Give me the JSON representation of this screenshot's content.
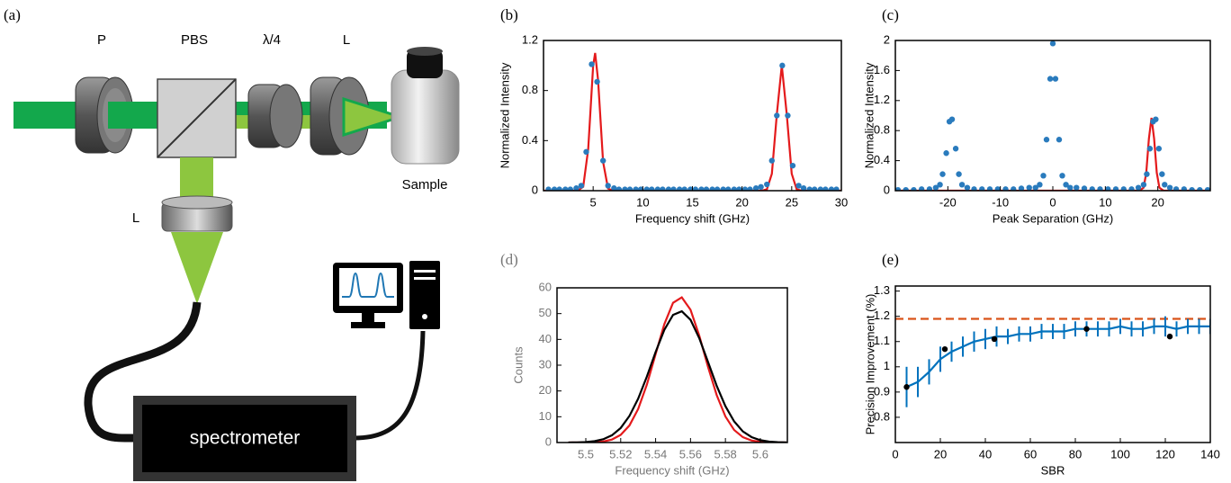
{
  "diagram": {
    "panel": "(a)",
    "labels": {
      "polarizer": "P",
      "pbs": "PBS",
      "waveplate": "λ/4",
      "lens_top": "L",
      "sample": "Sample",
      "lens_bottom": "L",
      "spectrometer": "spectrometer"
    }
  },
  "chart_data": [
    {
      "type": "line",
      "panel": "(b)",
      "xlabel": "Frequency shift (GHz)",
      "ylabel": "Normalized Intensity",
      "xlim": [
        0,
        30
      ],
      "ylim": [
        0,
        1.2
      ],
      "xticks": [
        5,
        10,
        15,
        20,
        25,
        30
      ],
      "yticks": [
        0,
        0.4,
        0.8,
        1.2
      ],
      "series": [
        {
          "color": "#e41a1c",
          "marker": "none",
          "x": [
            0,
            3,
            3.5,
            4,
            4.5,
            5,
            5.2,
            5.5,
            6,
            6.5,
            7,
            22,
            22.5,
            23,
            23.5,
            24,
            24.5,
            25,
            25.5,
            26,
            30
          ],
          "values": [
            0,
            0,
            0.003,
            0.031,
            0.33,
            1.0,
            1.1,
            0.88,
            0.23,
            0.017,
            0,
            0,
            0.011,
            0.135,
            0.61,
            1.0,
            0.61,
            0.135,
            0.011,
            0,
            0
          ]
        },
        {
          "color": "#2a7bbd",
          "marker": "dot",
          "x": [
            0.5,
            1.1,
            1.6,
            2.2,
            2.7,
            3.3,
            3.8,
            4.3,
            4.85,
            5.4,
            6.0,
            6.5,
            7.1,
            7.6,
            8.2,
            8.7,
            9.3,
            9.8,
            10.4,
            10.9,
            11.5,
            12.0,
            12.6,
            13.1,
            13.7,
            14.2,
            14.8,
            15.3,
            15.9,
            16.4,
            17.0,
            17.5,
            18.1,
            18.6,
            19.2,
            19.7,
            20.3,
            20.8,
            21.4,
            21.9,
            22.5,
            23.0,
            23.5,
            24.05,
            24.6,
            25.1,
            25.7,
            26.2,
            26.8,
            27.3,
            27.9,
            28.4,
            29.0,
            29.5
          ],
          "values": [
            0.01,
            0.01,
            0.01,
            0.01,
            0.01,
            0.02,
            0.04,
            0.31,
            1.01,
            0.87,
            0.24,
            0.04,
            0.02,
            0.01,
            0.01,
            0.01,
            0.01,
            0.01,
            0.01,
            0.01,
            0.01,
            0.01,
            0.01,
            0.01,
            0.01,
            0.01,
            0.01,
            0.01,
            0.01,
            0.01,
            0.01,
            0.01,
            0.01,
            0.01,
            0.01,
            0.01,
            0.01,
            0.01,
            0.02,
            0.03,
            0.05,
            0.24,
            0.6,
            1.0,
            0.6,
            0.2,
            0.04,
            0.02,
            0.01,
            0.01,
            0.01,
            0.01,
            0.01,
            0.01
          ]
        }
      ]
    },
    {
      "type": "line",
      "panel": "(c)",
      "xlabel": "Peak Separation (GHz)",
      "ylabel": "Normalized Intensity",
      "xlim": [
        -30,
        30
      ],
      "ylim": [
        0,
        2
      ],
      "xticks": [
        -20,
        -10,
        0,
        10,
        20
      ],
      "yticks": [
        0,
        0.4,
        0.8,
        1.2,
        1.6,
        2
      ],
      "series": [
        {
          "color": "#e41a1c",
          "marker": "none",
          "x": [
            -30,
            16.5,
            17.3,
            17.8,
            18.3,
            18.8,
            19.3,
            19.8,
            20.3,
            21.1,
            30
          ],
          "values": [
            0,
            0,
            0.04,
            0.24,
            0.69,
            0.97,
            0.69,
            0.24,
            0.04,
            0,
            0
          ]
        },
        {
          "color": "#2a7bbd",
          "marker": "dot",
          "x": [
            -29.5,
            -28,
            -26.5,
            -25,
            -23.5,
            -22.3,
            -21.5,
            -21,
            -20.3,
            -19.7,
            -19.2,
            -18.5,
            -17.9,
            -17.3,
            -16.3,
            -15,
            -13.5,
            -12,
            -10.5,
            -9,
            -7.5,
            -6,
            -4.5,
            -3.3,
            -2.5,
            -1.8,
            -1.2,
            -0.5,
            0,
            0.5,
            1.2,
            1.8,
            2.5,
            3.3,
            4.5,
            6,
            7.5,
            9,
            10.5,
            12,
            13.5,
            15,
            16.3,
            17.3,
            17.9,
            18.5,
            19.1,
            19.6,
            20.2,
            20.8,
            21.3,
            22.3,
            23.5,
            25,
            26.5,
            28,
            29.5
          ],
          "values": [
            0.01,
            0.01,
            0.01,
            0.02,
            0.02,
            0.04,
            0.08,
            0.22,
            0.5,
            0.92,
            0.95,
            0.56,
            0.22,
            0.08,
            0.04,
            0.02,
            0.02,
            0.02,
            0.02,
            0.02,
            0.02,
            0.03,
            0.04,
            0.04,
            0.08,
            0.2,
            0.68,
            1.49,
            1.96,
            1.49,
            0.68,
            0.2,
            0.08,
            0.04,
            0.04,
            0.03,
            0.02,
            0.02,
            0.02,
            0.02,
            0.02,
            0.02,
            0.04,
            0.08,
            0.22,
            0.56,
            0.92,
            0.95,
            0.56,
            0.22,
            0.08,
            0.04,
            0.02,
            0.02,
            0.01,
            0.01,
            0.01
          ]
        }
      ]
    },
    {
      "type": "line",
      "panel": "(d)",
      "xlabel": "Frequency shift (GHz)",
      "ylabel": "Counts",
      "xlim": [
        5.4835,
        5.6155
      ],
      "ylim": [
        0,
        60
      ],
      "xticks": [
        5.5,
        5.52,
        5.54,
        5.56,
        5.58,
        5.6
      ],
      "yticks": [
        0,
        10,
        20,
        30,
        40,
        50,
        60
      ],
      "series": [
        {
          "color": "#e41a1c",
          "marker": "none",
          "x": [
            5.49,
            5.495,
            5.5,
            5.505,
            5.51,
            5.515,
            5.52,
            5.525,
            5.53,
            5.535,
            5.54,
            5.545,
            5.55,
            5.555,
            5.56,
            5.565,
            5.57,
            5.575,
            5.58,
            5.585,
            5.59,
            5.595,
            5.6,
            5.605,
            5.61,
            5.615
          ],
          "values": [
            0,
            0.01,
            0.03,
            0.12,
            0.4,
            1.17,
            2.96,
            6.61,
            13.0,
            22.5,
            34.3,
            45.9,
            54.2,
            56.3,
            51.5,
            41.5,
            29.4,
            18.4,
            10.1,
            4.86,
            2.07,
            0.77,
            0.26,
            0.07,
            0.02,
            0
          ]
        },
        {
          "color": "#000000",
          "marker": "none",
          "x": [
            5.49,
            5.495,
            5.5,
            5.505,
            5.51,
            5.515,
            5.52,
            5.525,
            5.53,
            5.535,
            5.54,
            5.545,
            5.55,
            5.555,
            5.56,
            5.565,
            5.57,
            5.575,
            5.58,
            5.585,
            5.59,
            5.595,
            5.6,
            5.605,
            5.61,
            5.615
          ],
          "values": [
            0.02,
            0.07,
            0.2,
            0.53,
            1.28,
            2.82,
            5.64,
            10.3,
            17.0,
            25.6,
            35.1,
            43.7,
            49.5,
            50.9,
            47.6,
            40.5,
            31.3,
            22.0,
            14.1,
            8.2,
            4.3,
            2.1,
            0.91,
            0.36,
            0.13,
            0.04
          ]
        }
      ]
    },
    {
      "type": "line",
      "panel": "(e)",
      "xlabel": "SBR",
      "ylabel": "Precision Improvement (%)",
      "xlim": [
        0,
        140
      ],
      "ylim": [
        0.7,
        1.32
      ],
      "xticks": [
        0,
        20,
        40,
        60,
        80,
        100,
        120,
        140
      ],
      "yticks": [
        0.8,
        0.9,
        1,
        1.1,
        1.2,
        1.3
      ],
      "series": [
        {
          "color": "#d95319",
          "marker": "dash",
          "x": [
            0,
            140
          ],
          "values": [
            1.19,
            1.19
          ]
        },
        {
          "color": "#0072bd",
          "marker": "none",
          "x": [
            5,
            10,
            15,
            20,
            25,
            30,
            35,
            40,
            45,
            50,
            55,
            60,
            65,
            70,
            75,
            80,
            85,
            90,
            95,
            100,
            105,
            110,
            115,
            120,
            125,
            130,
            135,
            140
          ],
          "values": [
            0.92,
            0.94,
            0.98,
            1.03,
            1.06,
            1.08,
            1.1,
            1.11,
            1.12,
            1.12,
            1.13,
            1.13,
            1.14,
            1.14,
            1.14,
            1.15,
            1.15,
            1.15,
            1.15,
            1.16,
            1.15,
            1.15,
            1.16,
            1.16,
            1.15,
            1.16,
            1.16,
            1.16
          ],
          "error": [
            0.08,
            0.06,
            0.05,
            0.05,
            0.04,
            0.04,
            0.04,
            0.04,
            0.04,
            0.03,
            0.03,
            0.03,
            0.03,
            0.03,
            0.03,
            0.03,
            0.03,
            0.03,
            0.03,
            0.03,
            0.03,
            0.03,
            0.03,
            0.04,
            0.03,
            0.03,
            0.03,
            0.03
          ]
        },
        {
          "color": "#000000",
          "marker": "dot",
          "x": [
            5,
            22,
            44,
            85,
            122
          ],
          "values": [
            0.92,
            1.07,
            1.11,
            1.15,
            1.12
          ]
        }
      ]
    }
  ]
}
